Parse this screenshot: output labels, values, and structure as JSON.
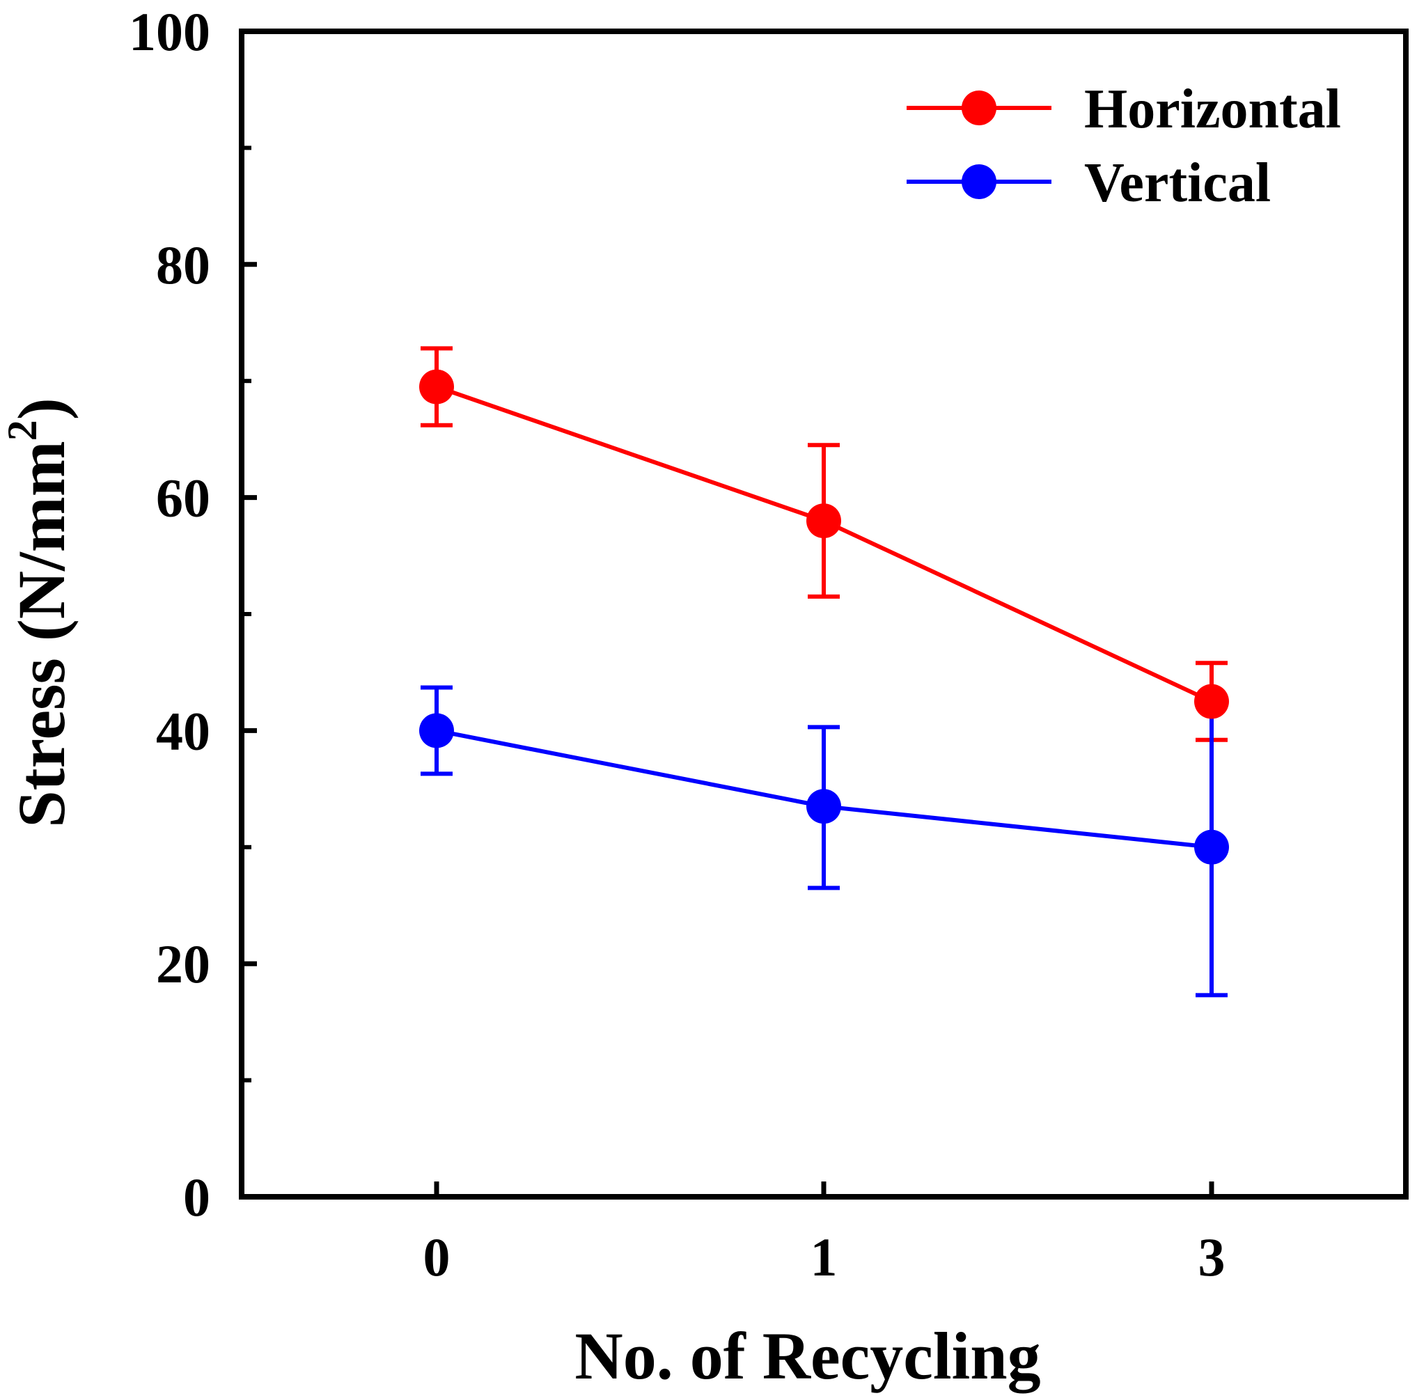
{
  "chart_data": {
    "type": "line",
    "title": "",
    "xlabel": "No. of Recycling",
    "ylabel": "Stress (N/mm",
    "ylabel_superscript": "2",
    "ylabel_close": ")",
    "x_categories": [
      "0",
      "1",
      "3"
    ],
    "ylim": [
      0,
      100
    ],
    "y_ticks": [
      0,
      20,
      40,
      60,
      80,
      100
    ],
    "y_tick_labels": [
      "0",
      "20",
      "40",
      "60",
      "80",
      "100"
    ],
    "y_minor_ticks": [
      10,
      30,
      50,
      70,
      90
    ],
    "grid": false,
    "legend_position": "top-right",
    "series": [
      {
        "name": "Horizontal",
        "color": "#ff0000",
        "values": [
          69.5,
          58.0,
          42.5
        ],
        "err_upper": [
          72.8,
          64.5,
          45.8
        ],
        "err_lower": [
          66.2,
          51.5,
          39.2
        ]
      },
      {
        "name": "Vertical",
        "color": "#0000ff",
        "values": [
          40.0,
          33.5,
          30.0
        ],
        "err_upper": [
          43.7,
          40.3,
          42.5
        ],
        "err_lower": [
          36.3,
          26.5,
          17.3
        ]
      }
    ]
  }
}
